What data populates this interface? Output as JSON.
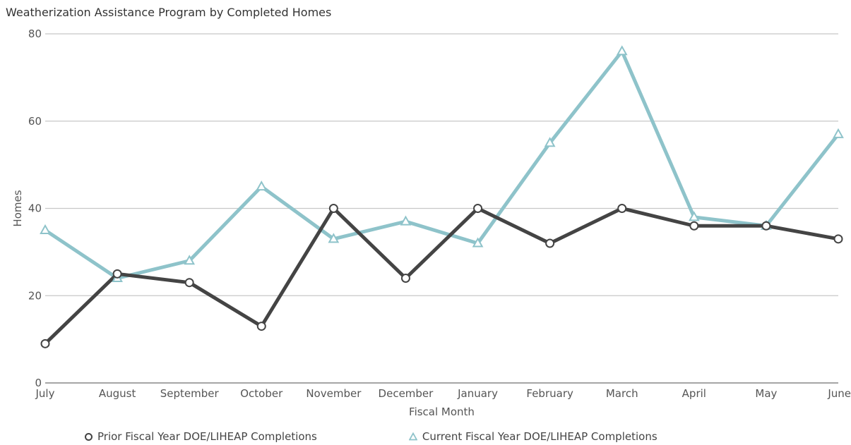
{
  "chart_data": {
    "type": "line",
    "title": "Weatherization Assistance Program by Completed Homes",
    "xlabel": "Fiscal Month",
    "ylabel": "Homes",
    "categories": [
      "July",
      "August",
      "September",
      "October",
      "November",
      "December",
      "January",
      "February",
      "March",
      "April",
      "May",
      "June"
    ],
    "ylim": [
      0,
      80
    ],
    "yticks": [
      0,
      20,
      40,
      60,
      80
    ],
    "grid": true,
    "legend": "bottom",
    "series": [
      {
        "name": "Prior Fiscal Year DOE/LIHEAP Completions",
        "values": [
          9,
          25,
          23,
          13,
          40,
          24,
          40,
          32,
          40,
          36,
          36,
          33
        ],
        "color": "#444444",
        "marker": "circle"
      },
      {
        "name": "Current Fiscal Year DOE/LIHEAP Completions",
        "values": [
          35,
          24,
          28,
          45,
          33,
          37,
          32,
          55,
          76,
          38,
          36,
          57
        ],
        "color": "#8ec3ca",
        "marker": "triangle"
      }
    ]
  }
}
